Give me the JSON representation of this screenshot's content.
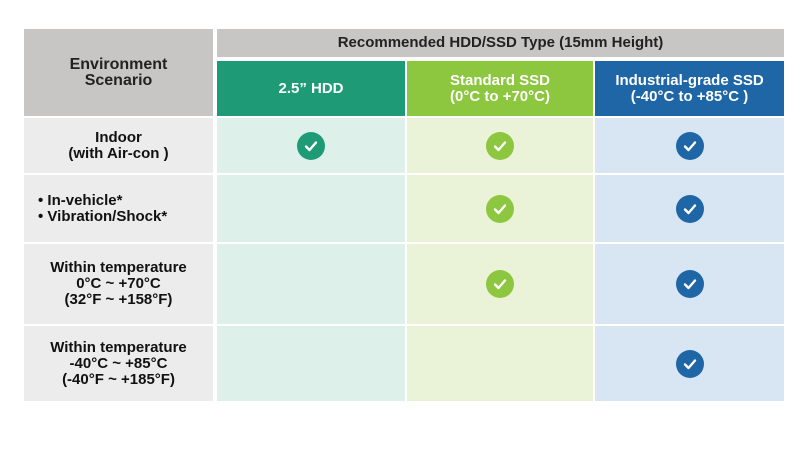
{
  "header": {
    "environment": [
      "Environment",
      "Scenario"
    ],
    "recommended": "Recommended HDD/SSD Type (15mm Height)",
    "columns": [
      {
        "lines": [
          "2.5” HDD"
        ],
        "color": "#1f9a77"
      },
      {
        "lines": [
          "Standard SSD",
          "(0°C to +70°C)"
        ],
        "color": "#8dc63f"
      },
      {
        "lines": [
          "Industrial-grade SSD",
          "(-40°C to +85°C )"
        ],
        "color": "#1f66a6"
      }
    ]
  },
  "rows": [
    {
      "label": [
        "Indoor",
        "(with Air-con )"
      ],
      "hdd": true,
      "std": true,
      "ind": true
    },
    {
      "label": [
        "• In-vehicle*",
        "• Vibration/Shock*"
      ],
      "hdd": false,
      "std": true,
      "ind": true
    },
    {
      "label": [
        "Within temperature",
        "0°C ~ +70°C",
        "(32°F ~ +158°F)"
      ],
      "hdd": false,
      "std": true,
      "ind": true
    },
    {
      "label": [
        "Within temperature",
        "-40°C ~ +85°C",
        "(-40°F ~ +185°F)"
      ],
      "hdd": false,
      "std": false,
      "ind": true
    }
  ],
  "icons": {
    "check": "check-circle-icon"
  }
}
